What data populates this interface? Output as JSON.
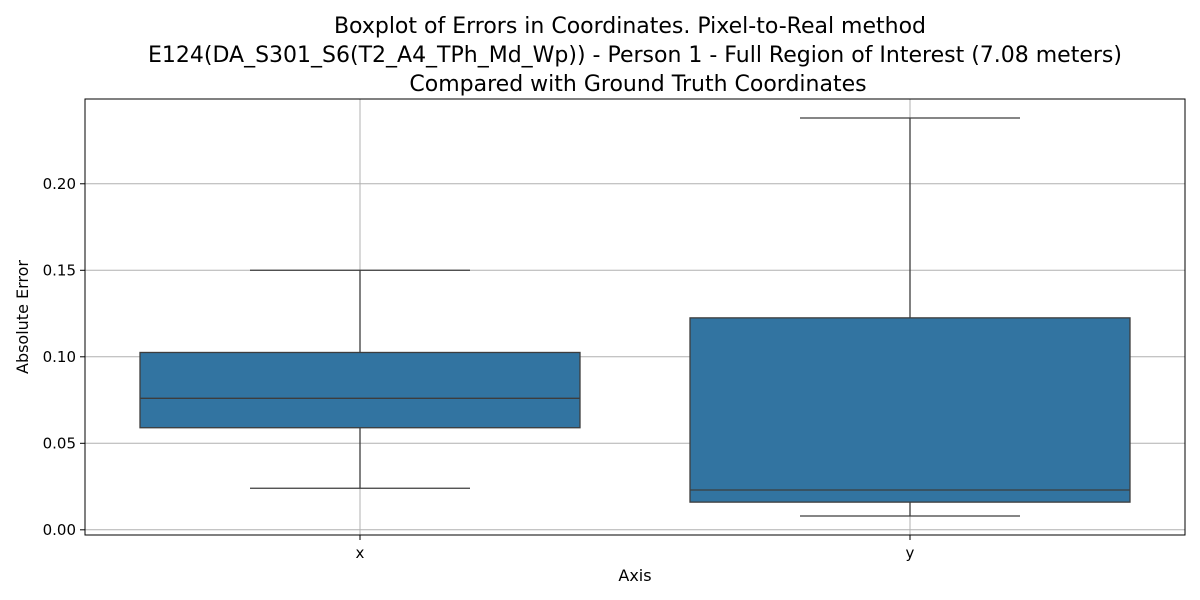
{
  "chart_data": {
    "type": "box",
    "title": [
      "Boxplot of Errors in Coordinates. Pixel-to-Real method",
      "E124(DA_S301_S6(T2_A4_TPh_Md_Wp)) - Person 1 - Full Region of Interest (7.08 meters)",
      "Compared with Ground Truth Coordinates"
    ],
    "xlabel": "Axis",
    "ylabel": "Absolute Error",
    "categories": [
      "x",
      "y"
    ],
    "ylim": [
      -0.003,
      0.249
    ],
    "yticks": [
      0.0,
      0.05,
      0.1,
      0.15,
      0.2
    ],
    "ytick_labels": [
      "0.00",
      "0.05",
      "0.10",
      "0.15",
      "0.20"
    ],
    "grid": true,
    "box_color": "#3274a1",
    "line_color": "#3d3d3d",
    "boxes": [
      {
        "category": "x",
        "whisker_low": 0.024,
        "q1": 0.059,
        "median": 0.076,
        "q3": 0.1025,
        "whisker_high": 0.15
      },
      {
        "category": "y",
        "whisker_low": 0.008,
        "q1": 0.016,
        "median": 0.023,
        "q3": 0.1225,
        "whisker_high": 0.238
      }
    ]
  }
}
